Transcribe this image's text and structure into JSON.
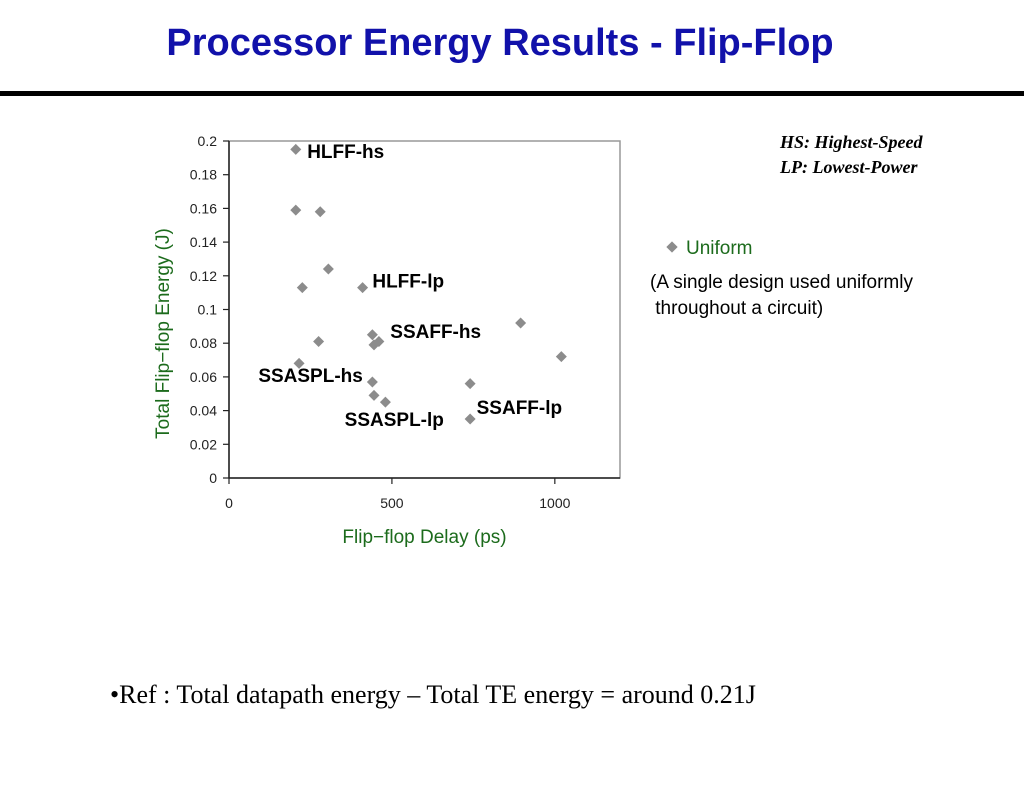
{
  "slide": {
    "title": "Processor Energy Results - Flip-Flop",
    "abbreviations": [
      "HS: Highest-Speed",
      "LP: Lowest-Power"
    ],
    "note": "(A single design used uniformly\n throughout a circuit)",
    "reference": "•Ref : Total datapath energy – Total TE energy = around 0.21J"
  },
  "colors": {
    "title": "#1111aa",
    "axis_title": "#1c6b1c",
    "marker": "#8c8c8c"
  },
  "chart_data": {
    "type": "scatter",
    "xlabel": "Flip−flop Delay (ps)",
    "ylabel": "Total Flip−flop Energy (J)",
    "xlim": [
      0,
      1200
    ],
    "ylim": [
      0,
      0.2
    ],
    "xticks": [
      0,
      500,
      1000
    ],
    "yticks": [
      0,
      0.02,
      0.04,
      0.06,
      0.08,
      0.1,
      0.12,
      0.14,
      0.16,
      0.18,
      0.2
    ],
    "ytick_labels": [
      "0",
      "0.02",
      "0.04",
      "0.06",
      "0.08",
      "0.1",
      "0.12",
      "0.14",
      "0.16",
      "0.18",
      "0.2"
    ],
    "grid": false,
    "legend": "right",
    "series": [
      {
        "name": "Uniform",
        "points": [
          {
            "x": 205,
            "y": 0.195
          },
          {
            "x": 205,
            "y": 0.159
          },
          {
            "x": 280,
            "y": 0.158
          },
          {
            "x": 305,
            "y": 0.124
          },
          {
            "x": 225,
            "y": 0.113
          },
          {
            "x": 410,
            "y": 0.113
          },
          {
            "x": 440,
            "y": 0.085
          },
          {
            "x": 460,
            "y": 0.081
          },
          {
            "x": 445,
            "y": 0.079
          },
          {
            "x": 275,
            "y": 0.081
          },
          {
            "x": 215,
            "y": 0.068
          },
          {
            "x": 440,
            "y": 0.057
          },
          {
            "x": 445,
            "y": 0.049
          },
          {
            "x": 480,
            "y": 0.045
          },
          {
            "x": 740,
            "y": 0.056
          },
          {
            "x": 740,
            "y": 0.035
          },
          {
            "x": 895,
            "y": 0.092
          },
          {
            "x": 1020,
            "y": 0.072
          }
        ]
      }
    ],
    "annotations": [
      {
        "text": "HLFF-hs",
        "x": 240,
        "y": 0.19
      },
      {
        "text": "HLFF-lp",
        "x": 440,
        "y": 0.113
      },
      {
        "text": "SSAFF-hs",
        "x": 495,
        "y": 0.083
      },
      {
        "text": "SSASPL-hs",
        "x": 90,
        "y": 0.057
      },
      {
        "text": "SSAFF-lp",
        "x": 760,
        "y": 0.038
      },
      {
        "text": "SSASPL-lp",
        "x": 355,
        "y": 0.031
      }
    ]
  }
}
